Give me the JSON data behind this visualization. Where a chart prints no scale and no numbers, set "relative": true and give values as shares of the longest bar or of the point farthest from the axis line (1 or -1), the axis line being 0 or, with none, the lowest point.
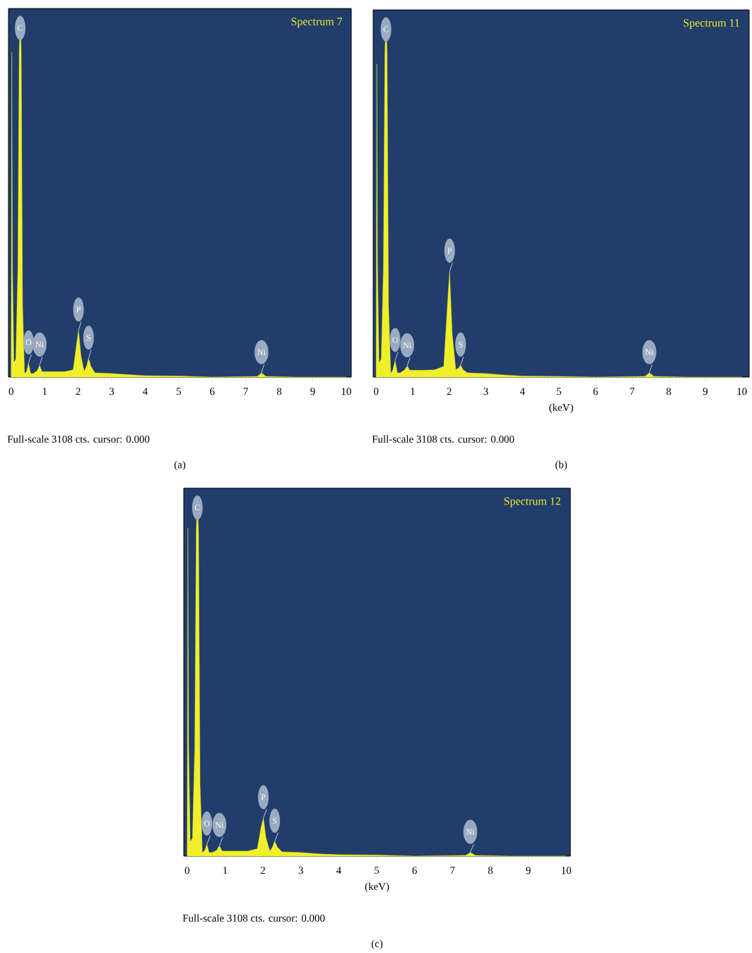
{
  "chart_data": [
    {
      "type": "area",
      "title": "Spectrum 7",
      "relative": true,
      "color": "#f0ef2a",
      "xlim": [
        -0.08,
        10.15
      ],
      "xticks": [
        0,
        1,
        2,
        3,
        4,
        5,
        6,
        7,
        8,
        9,
        10
      ],
      "x": [
        0,
        0.02,
        0.04,
        0.08,
        0.14,
        0.2,
        0.24,
        0.27,
        0.3,
        0.34,
        0.4,
        0.46,
        0.52,
        0.58,
        0.66,
        0.78,
        0.85,
        0.92,
        1.0,
        1.3,
        1.6,
        1.85,
        1.95,
        2.01,
        2.08,
        2.18,
        2.25,
        2.31,
        2.38,
        2.5,
        3.0,
        3.5,
        4.0,
        5.0,
        6.0,
        7.35,
        7.47,
        7.6,
        8.5,
        10.0
      ],
      "values": [
        0,
        0.9,
        0.3,
        0.04,
        0.05,
        0.3,
        0.9,
        1,
        0.9,
        0.2,
        0.01,
        0.015,
        0.039,
        0.01,
        0.01,
        0.018,
        0.033,
        0.015,
        0.015,
        0.015,
        0.015,
        0.02,
        0.09,
        0.13,
        0.06,
        0.015,
        0.03,
        0.052,
        0.03,
        0.012,
        0.01,
        0.007,
        0.004,
        0.003,
        0,
        0.002,
        0.012,
        0.002,
        0,
        0
      ],
      "annotations": [
        {
          "text": "C",
          "x": 0.27,
          "y": 1
        },
        {
          "text": "O",
          "x": 0.52,
          "y": 0.039
        },
        {
          "text": "Ni",
          "x": 0.85,
          "y": 0.033
        },
        {
          "text": "P",
          "x": 2.01,
          "y": 0.13
        },
        {
          "text": "S",
          "x": 2.31,
          "y": 0.052
        },
        {
          "text": "Ni",
          "x": 7.47,
          "y": 0.012
        },
        "Full-scale 3108 cts. cursor: 0.000",
        "(a)"
      ]
    },
    {
      "type": "area",
      "title": "Spectrum 11",
      "xlabel": "(keV)",
      "relative": true,
      "color": "#f0ef2a",
      "xlim": [
        -0.08,
        10.2
      ],
      "xticks": [
        0,
        1,
        2,
        3,
        4,
        5,
        6,
        7,
        8,
        9,
        10
      ],
      "x": [
        0,
        0.02,
        0.04,
        0.08,
        0.14,
        0.2,
        0.24,
        0.27,
        0.3,
        0.34,
        0.4,
        0.46,
        0.52,
        0.58,
        0.66,
        0.78,
        0.85,
        0.92,
        1.0,
        1.3,
        1.6,
        1.85,
        1.95,
        2.01,
        2.08,
        2.18,
        2.25,
        2.31,
        2.38,
        2.5,
        3.0,
        3.5,
        4.0,
        5.0,
        6.0,
        7.35,
        7.47,
        7.6,
        8.5,
        10.0
      ],
      "values": [
        0,
        0.87,
        0.3,
        0.04,
        0.05,
        0.3,
        0.9,
        1,
        0.9,
        0.2,
        0.01,
        0.02,
        0.046,
        0.012,
        0.012,
        0.02,
        0.031,
        0.019,
        0.019,
        0.019,
        0.02,
        0.03,
        0.2,
        0.294,
        0.12,
        0.02,
        0.025,
        0.033,
        0.02,
        0.012,
        0.01,
        0.006,
        0.003,
        0.002,
        0,
        0.002,
        0.012,
        0.002,
        0,
        0
      ],
      "annotations": [
        {
          "text": "C",
          "x": 0.27,
          "y": 1
        },
        {
          "text": "O",
          "x": 0.52,
          "y": 0.046
        },
        {
          "text": "Ni",
          "x": 0.85,
          "y": 0.031
        },
        {
          "text": "P",
          "x": 2.01,
          "y": 0.294
        },
        {
          "text": "S",
          "x": 2.31,
          "y": 0.033
        },
        {
          "text": "Ni",
          "x": 7.47,
          "y": 0.012
        },
        "Full-scale 3108 cts. cursor: 0.000",
        "(b)"
      ]
    },
    {
      "type": "area",
      "title": "Spectrum 12",
      "xlabel": "(keV)",
      "relative": true,
      "color": "#f0ef2a",
      "xlim": [
        -0.09,
        10.11
      ],
      "xticks": [
        0,
        1,
        2,
        3,
        4,
        5,
        6,
        7,
        8,
        9,
        10
      ],
      "x": [
        0,
        0.02,
        0.04,
        0.08,
        0.14,
        0.2,
        0.24,
        0.27,
        0.3,
        0.34,
        0.4,
        0.46,
        0.52,
        0.58,
        0.66,
        0.78,
        0.85,
        0.92,
        1.0,
        1.3,
        1.6,
        1.85,
        1.95,
        2.01,
        2.08,
        2.18,
        2.25,
        2.31,
        2.38,
        2.5,
        3.0,
        3.5,
        4.0,
        5.0,
        6.0,
        7.35,
        7.47,
        7.6,
        8.5,
        10.0
      ],
      "values": [
        0,
        0.91,
        0.3,
        0.04,
        0.05,
        0.3,
        0.9,
        1,
        0.9,
        0.2,
        0.01,
        0.015,
        0.033,
        0.01,
        0.01,
        0.016,
        0.029,
        0.014,
        0.014,
        0.014,
        0.014,
        0.02,
        0.08,
        0.106,
        0.05,
        0.014,
        0.025,
        0.041,
        0.025,
        0.012,
        0.01,
        0.006,
        0.004,
        0.003,
        0,
        0.002,
        0.01,
        0.002,
        0,
        0
      ],
      "annotations": [
        {
          "text": "C",
          "x": 0.27,
          "y": 1
        },
        {
          "text": "O",
          "x": 0.52,
          "y": 0.033
        },
        {
          "text": "Ni",
          "x": 0.85,
          "y": 0.029
        },
        {
          "text": "P",
          "x": 2.01,
          "y": 0.106
        },
        {
          "text": "S",
          "x": 2.31,
          "y": 0.041
        },
        {
          "text": "Ni",
          "x": 7.47,
          "y": 0.01
        },
        "Full-scale 3108 cts. cursor: 0.000",
        "(c)"
      ]
    }
  ]
}
